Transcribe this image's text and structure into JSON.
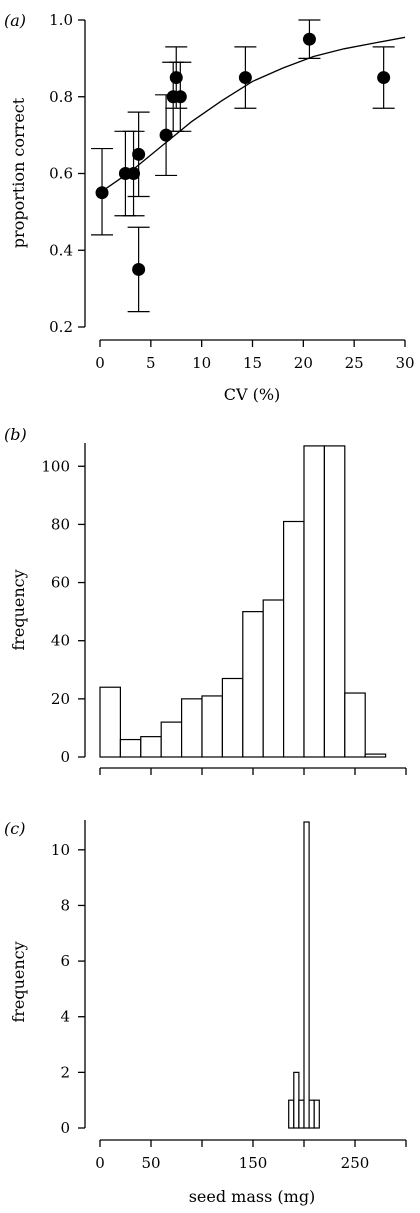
{
  "chart_data": [
    {
      "panel": "(a)",
      "type": "scatter",
      "xlabel": "CV (%)",
      "ylabel": "proportion correct",
      "xlim": [
        0,
        30
      ],
      "ylim": [
        0.2,
        1.0
      ],
      "xticks": [
        "0",
        "5",
        "10",
        "15",
        "20",
        "25",
        "30"
      ],
      "yticks": [
        "0.2",
        "0.4",
        "0.6",
        "0.8",
        "1.0"
      ],
      "points": [
        {
          "x": 0.2,
          "y": 0.55,
          "lo": 0.44,
          "hi": 0.665
        },
        {
          "x": 2.5,
          "y": 0.6,
          "lo": 0.49,
          "hi": 0.71
        },
        {
          "x": 3.3,
          "y": 0.6,
          "lo": 0.49,
          "hi": 0.71
        },
        {
          "x": 3.8,
          "y": 0.35,
          "lo": 0.24,
          "hi": 0.46
        },
        {
          "x": 3.8,
          "y": 0.65,
          "lo": 0.54,
          "hi": 0.76
        },
        {
          "x": 6.5,
          "y": 0.7,
          "lo": 0.595,
          "hi": 0.805
        },
        {
          "x": 7.2,
          "y": 0.8,
          "lo": 0.71,
          "hi": 0.89
        },
        {
          "x": 7.5,
          "y": 0.85,
          "lo": 0.77,
          "hi": 0.93
        },
        {
          "x": 7.9,
          "y": 0.8,
          "lo": 0.71,
          "hi": 0.89
        },
        {
          "x": 14.3,
          "y": 0.85,
          "lo": 0.77,
          "hi": 0.93
        },
        {
          "x": 20.6,
          "y": 0.95,
          "lo": 0.9,
          "hi": 1.0
        },
        {
          "x": 27.9,
          "y": 0.85,
          "lo": 0.77,
          "hi": 0.93
        }
      ],
      "fit_curve": {
        "x": [
          0,
          3,
          6,
          9,
          12,
          15,
          18,
          21,
          24,
          27,
          30
        ],
        "y": [
          0.55,
          0.605,
          0.67,
          0.735,
          0.79,
          0.84,
          0.875,
          0.905,
          0.925,
          0.94,
          0.955
        ]
      }
    },
    {
      "panel": "(b)",
      "type": "bar",
      "xlabel": "",
      "ylabel": "frequency",
      "xlim": [
        0,
        300
      ],
      "ylim": [
        0,
        108
      ],
      "yticks": [
        "0",
        "20",
        "40",
        "60",
        "80",
        "100"
      ],
      "bin_width": 20,
      "bins_start": [
        0,
        20,
        40,
        60,
        80,
        100,
        120,
        140,
        160,
        180,
        200,
        220,
        240,
        260,
        280
      ],
      "values": [
        24,
        6,
        7,
        12,
        20,
        21,
        27,
        50,
        54,
        81,
        107,
        107,
        22,
        1,
        0
      ]
    },
    {
      "panel": "(c)",
      "type": "bar",
      "xlabel": "seed mass (mg)",
      "ylabel": "frequency",
      "xlim": [
        0,
        300
      ],
      "ylim": [
        0,
        11
      ],
      "xticks": [
        "0",
        "50",
        "150",
        "250"
      ],
      "yticks": [
        "0",
        "2",
        "4",
        "6",
        "8",
        "10"
      ],
      "bin_width": 5,
      "bins_start": [
        185,
        190,
        195,
        200,
        205,
        210
      ],
      "values": [
        1,
        2,
        1,
        11,
        1,
        1
      ]
    }
  ]
}
